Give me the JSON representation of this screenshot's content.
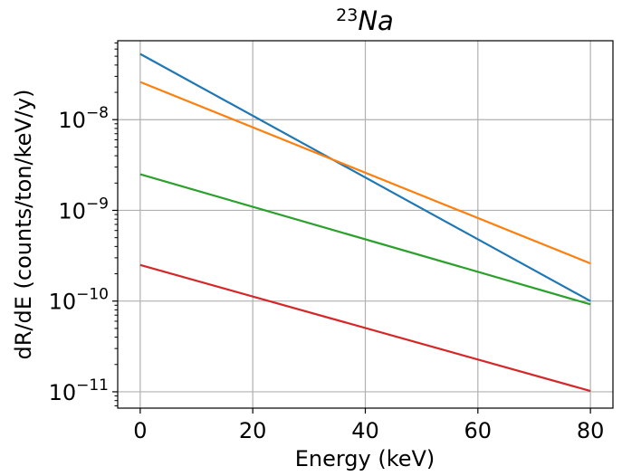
{
  "chart_data": {
    "type": "line",
    "title_superscript": "23",
    "title_main": "Na",
    "xlabel": "Energy (keV)",
    "ylabel": "dR/dE (counts/ton/keV/y)",
    "xlim": [
      -4,
      84
    ],
    "ylim_log10": [
      -11.18,
      -7.13
    ],
    "yscale": "log",
    "grid": true,
    "x_ticks": [
      0,
      20,
      40,
      60,
      80
    ],
    "x_tick_labels": [
      "0",
      "20",
      "40",
      "60",
      "80"
    ],
    "y_ticks": [
      {
        "base": "10",
        "exp": "−8",
        "log10": -8
      },
      {
        "base": "10",
        "exp": "−9",
        "log10": -9
      },
      {
        "base": "10",
        "exp": "−10",
        "log10": -10
      },
      {
        "base": "10",
        "exp": "−11",
        "log10": -11
      }
    ],
    "series": [
      {
        "name": "blue",
        "color": "#1f77b4",
        "x": [
          0,
          80
        ],
        "y": [
          5.3e-08,
          1e-10
        ]
      },
      {
        "name": "orange",
        "color": "#ff7f0e",
        "x": [
          0,
          80
        ],
        "y": [
          2.6e-08,
          2.6e-10
        ]
      },
      {
        "name": "green",
        "color": "#2ca02c",
        "x": [
          0,
          80
        ],
        "y": [
          2.5e-09,
          9.2e-11
        ]
      },
      {
        "name": "red",
        "color": "#d62728",
        "x": [
          0,
          80
        ],
        "y": [
          2.5e-10,
          1.02e-11
        ]
      }
    ]
  }
}
